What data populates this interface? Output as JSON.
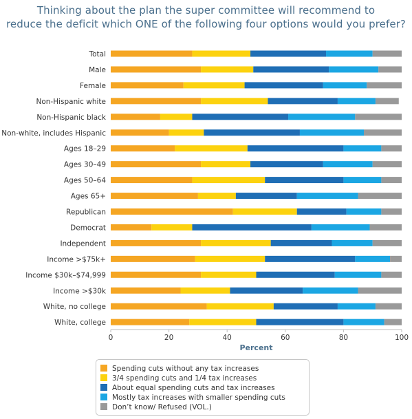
{
  "chart_data": {
    "type": "bar",
    "orientation": "horizontal",
    "stacked": true,
    "title_lines": [
      "Thinking about the plan the super committee will recommend to",
      "reduce the deficit which ONE of the following four options would you prefer?"
    ],
    "xlabel": "Percent",
    "xlim": [
      0,
      100
    ],
    "xticks": [
      "0",
      "20",
      "40",
      "60",
      "80",
      "100"
    ],
    "categories": [
      "Total",
      "Male",
      "Female",
      "Non-Hispanic white",
      "Non-Hispanic black",
      "Non-white, includes Hispanic",
      "Ages 18–29",
      "Ages 30–49",
      "Ages 50–64",
      "Ages 65+",
      "Republican",
      "Democrat",
      "Independent",
      "Income >$75k+",
      "Income $30k–$74,999",
      "Income >$30k",
      "White, no college",
      "White, college"
    ],
    "series": [
      {
        "name": "Spending cuts without any tax increases",
        "color": "#f5a623",
        "values": [
          28,
          31,
          25,
          31,
          17,
          20,
          22,
          31,
          28,
          30,
          42,
          14,
          31,
          29,
          31,
          24,
          33,
          27
        ]
      },
      {
        "name": "3/4 spending cuts and 1/4 tax increases",
        "color": "#fcd20f",
        "values": [
          20,
          18,
          21,
          23,
          11,
          12,
          25,
          17,
          25,
          13,
          22,
          14,
          24,
          24,
          19,
          17,
          23,
          23
        ]
      },
      {
        "name": "About equal spending cuts and tax increases",
        "color": "#1f6eb5",
        "values": [
          26,
          26,
          27,
          24,
          33,
          33,
          33,
          25,
          27,
          21,
          17,
          41,
          21,
          31,
          27,
          25,
          22,
          30
        ]
      },
      {
        "name": "Mostly tax increases with smaller spending cuts",
        "color": "#1ba6e3",
        "values": [
          16,
          17,
          15,
          13,
          23,
          22,
          13,
          17,
          13,
          21,
          12,
          20,
          14,
          12,
          16,
          19,
          13,
          14
        ]
      },
      {
        "name": "Don’t know/ Refused (VOL.)",
        "color": "#999999",
        "values": [
          10,
          8,
          12,
          8,
          16,
          13,
          7,
          10,
          7,
          15,
          7,
          11,
          10,
          4,
          7,
          15,
          9,
          6
        ]
      }
    ],
    "grid": false,
    "legend_position": "bottom"
  }
}
